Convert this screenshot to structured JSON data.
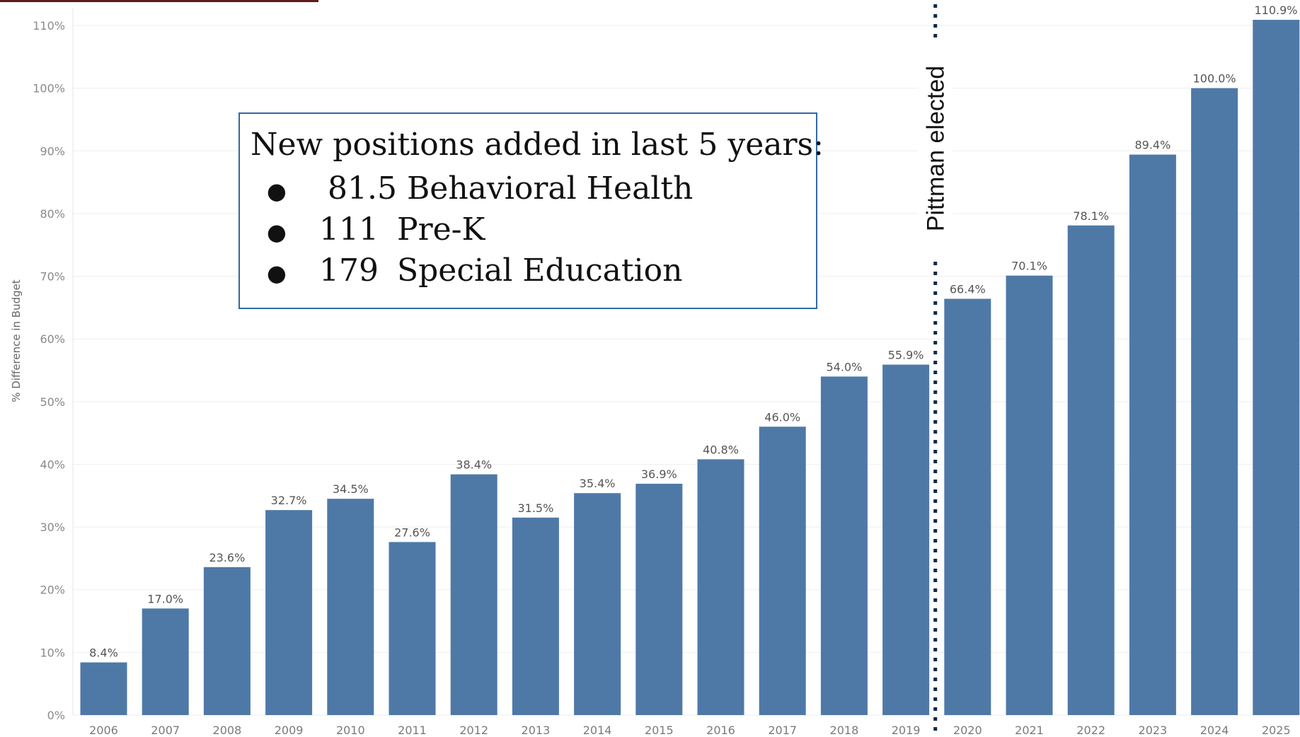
{
  "chart_data": {
    "type": "bar",
    "ylabel": "% Difference in Budget",
    "ylim": [
      0,
      110
    ],
    "yticks": [
      "0%",
      "10%",
      "20%",
      "30%",
      "40%",
      "50%",
      "60%",
      "70%",
      "80%",
      "90%",
      "100%",
      "110%"
    ],
    "categories": [
      "2006",
      "2007",
      "2008",
      "2009",
      "2010",
      "2011",
      "2012",
      "2013",
      "2014",
      "2015",
      "2016",
      "2017",
      "2018",
      "2019",
      "2020",
      "2021",
      "2022",
      "2023",
      "2024",
      "2025"
    ],
    "values": [
      8.4,
      17.0,
      23.6,
      32.7,
      34.5,
      27.6,
      38.4,
      31.5,
      35.4,
      36.9,
      40.8,
      46.0,
      54.0,
      55.9,
      66.4,
      70.1,
      78.1,
      89.4,
      100.0,
      110.9
    ],
    "data_labels": [
      "8.4%",
      "17.0%",
      "23.6%",
      "32.7%",
      "34.5%",
      "27.6%",
      "38.4%",
      "31.5%",
      "35.4%",
      "36.9%",
      "40.8%",
      "46.0%",
      "54.0%",
      "55.9%",
      "66.4%",
      "70.1%",
      "78.1%",
      "89.4%",
      "100.0%",
      "110.9%"
    ],
    "bar_color": "#4e79a7",
    "grid": true,
    "annotation": {
      "text": "Pittman elected",
      "between": [
        "2019",
        "2020"
      ]
    }
  },
  "note": {
    "title": "New positions added in last 5 years:",
    "items": [
      {
        "number": "81.5",
        "label": "Behavioral Health"
      },
      {
        "number": "111",
        "label": "Pre-K"
      },
      {
        "number": "179",
        "label": "Special Education"
      }
    ]
  }
}
